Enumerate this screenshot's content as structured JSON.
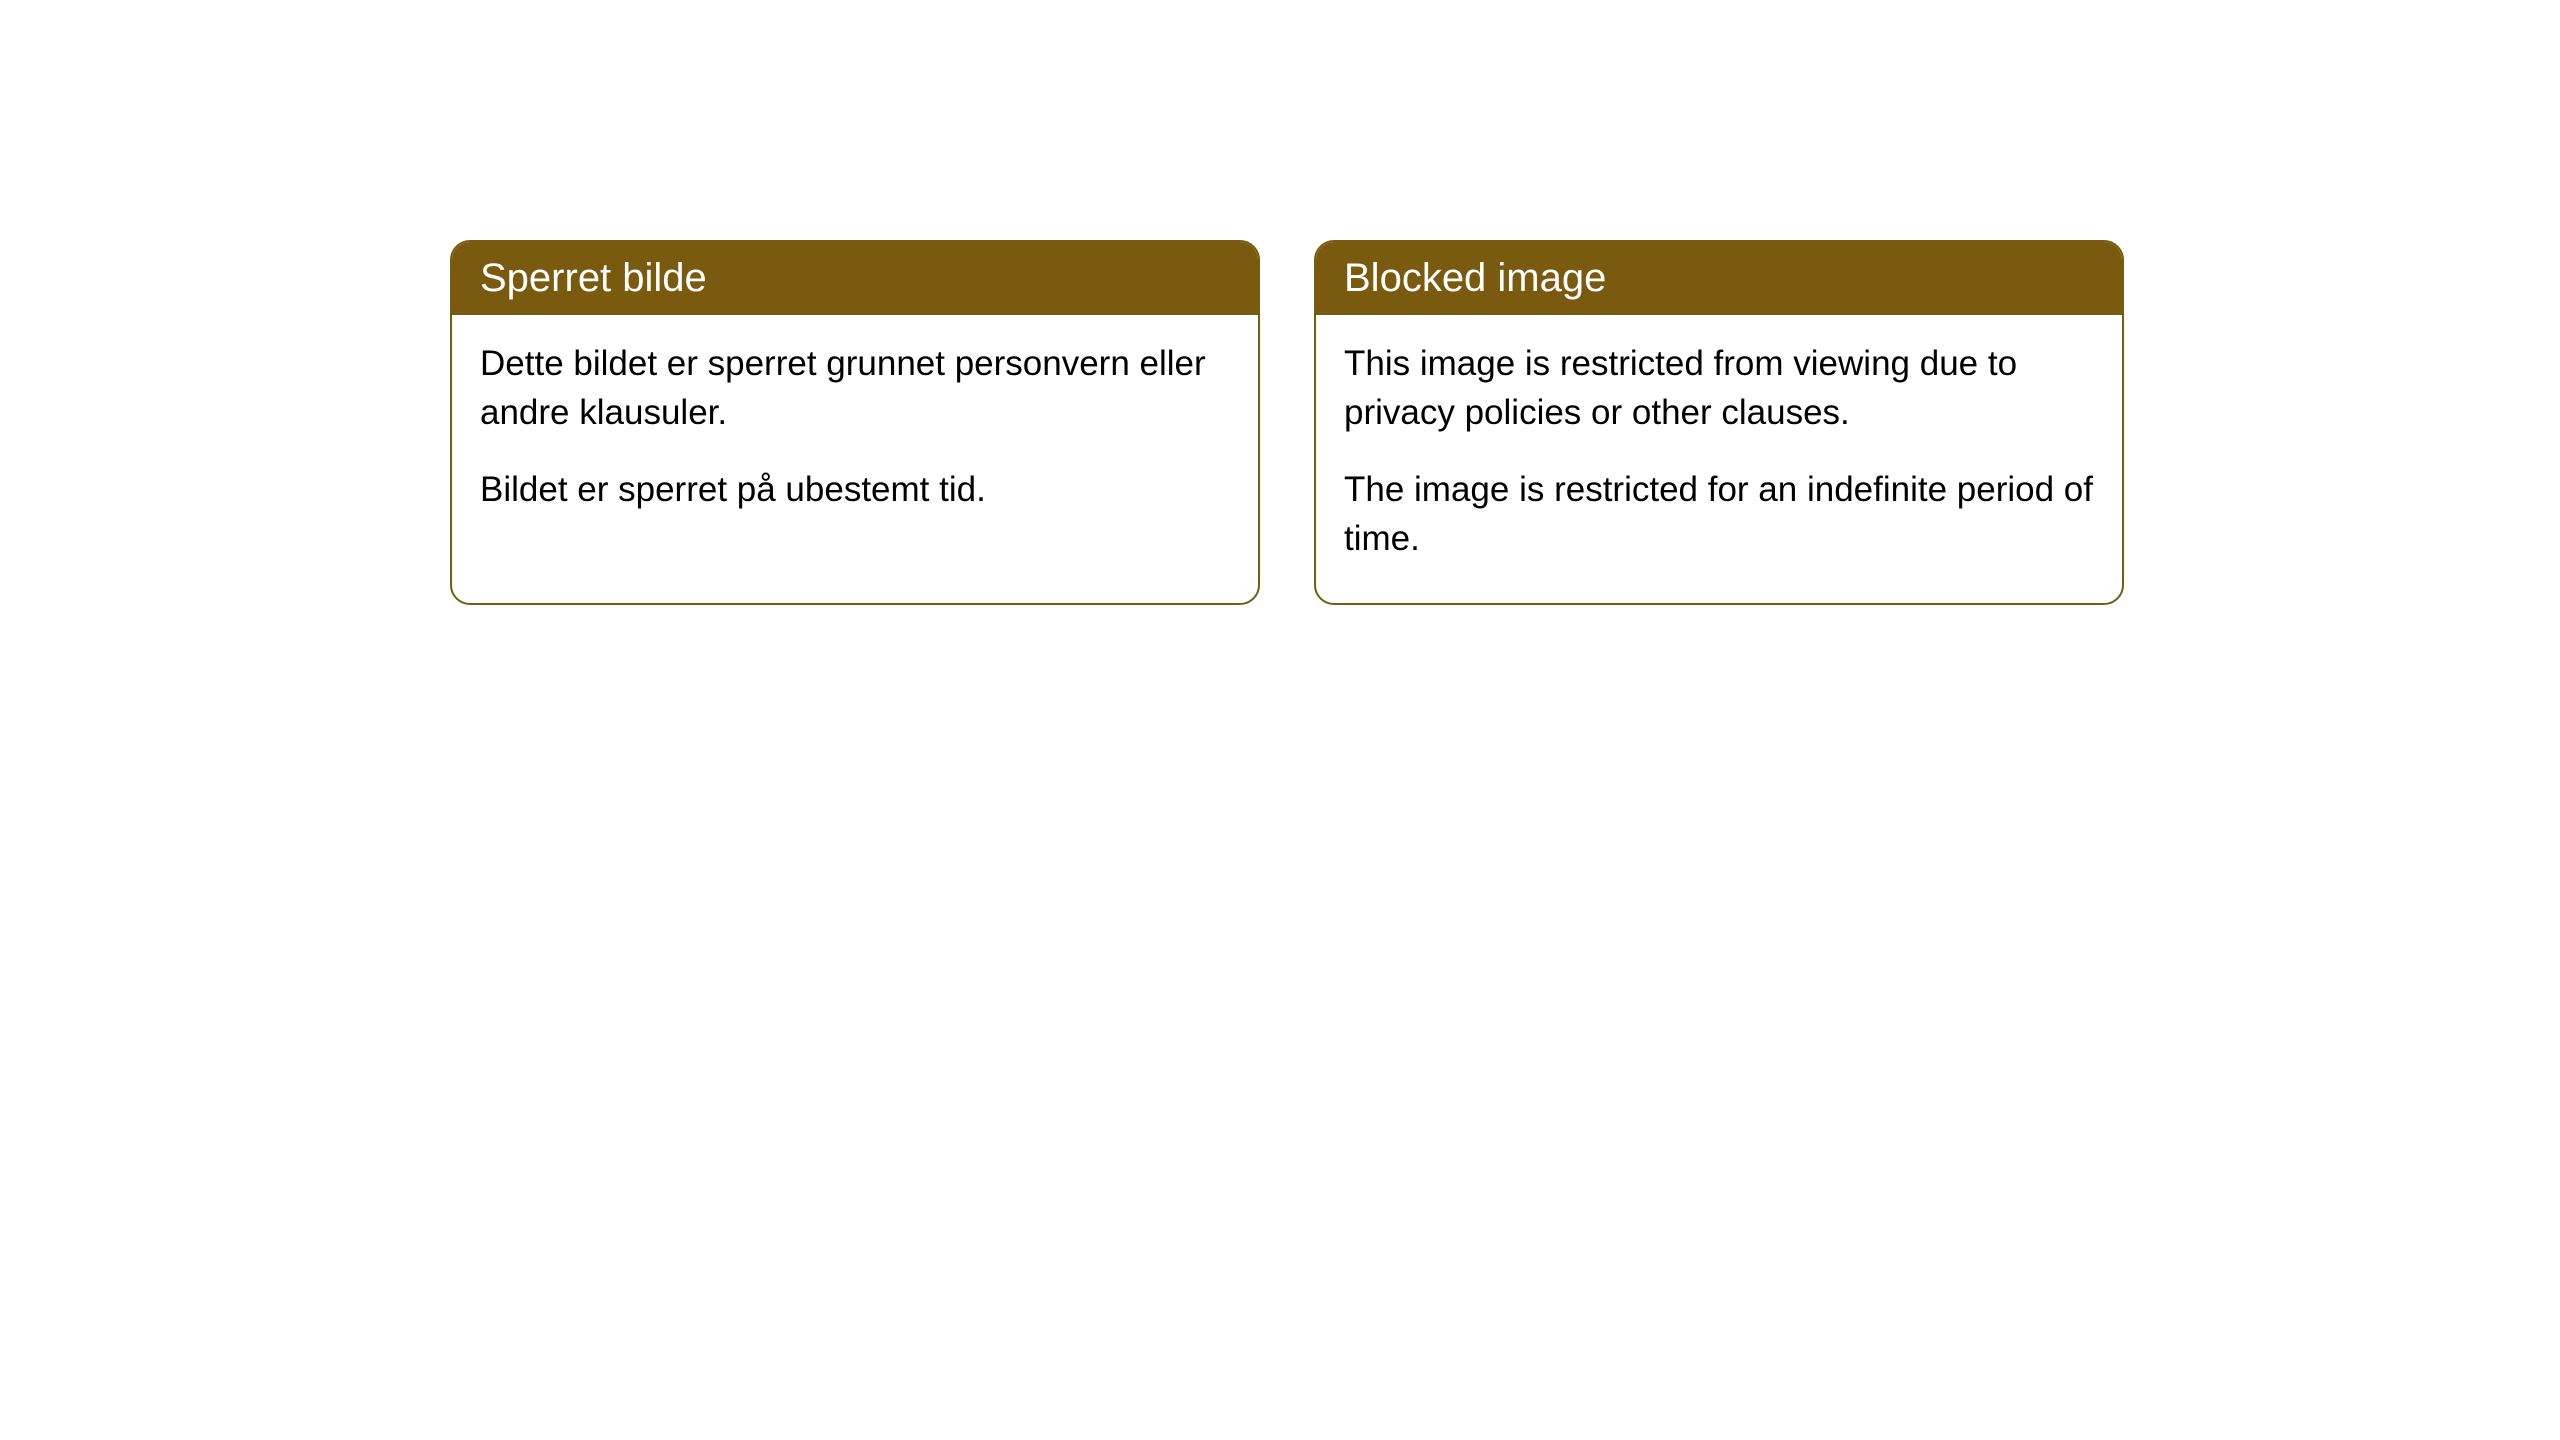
{
  "cards": [
    {
      "title": "Sperret bilde",
      "paragraph1": "Dette bildet er sperret grunnet personvern eller andre klausuler.",
      "paragraph2": "Bildet er sperret på ubestemt tid."
    },
    {
      "title": "Blocked image",
      "paragraph1": "This image is restricted from viewing due to privacy policies or other clauses.",
      "paragraph2": "The image is restricted for an indefinite period of time."
    }
  ],
  "styles": {
    "header_bg_color": "#7a5a0f",
    "header_text_color": "#ffffff",
    "card_border_color": "#7a5a0f",
    "card_bg_color": "#ffffff",
    "body_text_color": "#000000",
    "header_fontsize": 40,
    "body_fontsize": 35,
    "border_radius": 20
  }
}
